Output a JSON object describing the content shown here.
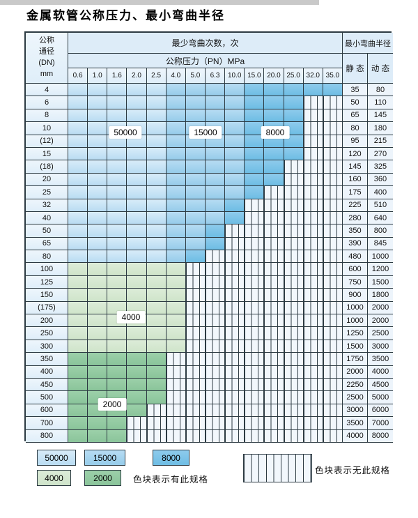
{
  "page": {
    "title": "金属软管公称压力、最小弯曲半径"
  },
  "table": {
    "corner_header": [
      "公称",
      "通径",
      "(DN)",
      "mm"
    ],
    "bend_header": "最少弯曲次数，次",
    "pressure_header": "公称压力（PN）MPa",
    "radius_header": "最小弯曲半径",
    "static_label": "静 态",
    "dynamic_label": "动 态",
    "pressure_ticks": [
      "0.6",
      "1.0",
      "1.6",
      "2.0",
      "2.5",
      "4.0",
      "5.0",
      "6.3",
      "10.0",
      "15.0",
      "20.0",
      "25.0",
      "32.0",
      "35.0"
    ],
    "overlay_labels": [
      "50000",
      "15000",
      "8000",
      "4000",
      "2000"
    ],
    "rows": [
      {
        "dn": "4",
        "regions": [
          [
            "c50000",
            0,
            4
          ],
          [
            "c15000",
            5,
            8
          ],
          [
            "c8000",
            9,
            13
          ]
        ],
        "static": "35",
        "dynamic": "80"
      },
      {
        "dn": "6",
        "regions": [
          [
            "c50000",
            0,
            4
          ],
          [
            "c15000",
            5,
            8
          ],
          [
            "c8000",
            9,
            11
          ]
        ],
        "static": "50",
        "dynamic": "110"
      },
      {
        "dn": "8",
        "regions": [
          [
            "c50000",
            0,
            4
          ],
          [
            "c15000",
            5,
            8
          ],
          [
            "c8000",
            9,
            11
          ]
        ],
        "static": "65",
        "dynamic": "145"
      },
      {
        "dn": "10",
        "regions": [
          [
            "c50000",
            0,
            4
          ],
          [
            "c15000",
            5,
            8
          ],
          [
            "c8000",
            9,
            11
          ]
        ],
        "static": "80",
        "dynamic": "180"
      },
      {
        "dn": "(12)",
        "regions": [
          [
            "c50000",
            0,
            4
          ],
          [
            "c15000",
            5,
            8
          ],
          [
            "c8000",
            9,
            11
          ]
        ],
        "static": "95",
        "dynamic": "215"
      },
      {
        "dn": "15",
        "regions": [
          [
            "c50000",
            0,
            4
          ],
          [
            "c15000",
            5,
            8
          ],
          [
            "c8000",
            9,
            11
          ]
        ],
        "static": "120",
        "dynamic": "270"
      },
      {
        "dn": "(18)",
        "regions": [
          [
            "c50000",
            0,
            4
          ],
          [
            "c15000",
            5,
            8
          ],
          [
            "c8000",
            9,
            10
          ]
        ],
        "static": "145",
        "dynamic": "325"
      },
      {
        "dn": "20",
        "regions": [
          [
            "c50000",
            0,
            4
          ],
          [
            "c15000",
            5,
            8
          ],
          [
            "c8000",
            9,
            10
          ]
        ],
        "static": "160",
        "dynamic": "360"
      },
      {
        "dn": "25",
        "regions": [
          [
            "c50000",
            0,
            4
          ],
          [
            "c15000",
            5,
            8
          ],
          [
            "c8000",
            9,
            9
          ]
        ],
        "static": "175",
        "dynamic": "400"
      },
      {
        "dn": "32",
        "regions": [
          [
            "c50000",
            0,
            4
          ],
          [
            "c15000",
            5,
            7
          ],
          [
            "c8000",
            8,
            8
          ]
        ],
        "static": "225",
        "dynamic": "510"
      },
      {
        "dn": "40",
        "regions": [
          [
            "c50000",
            0,
            4
          ],
          [
            "c15000",
            5,
            7
          ],
          [
            "c8000",
            8,
            8
          ]
        ],
        "static": "280",
        "dynamic": "640"
      },
      {
        "dn": "50",
        "regions": [
          [
            "c50000",
            0,
            4
          ],
          [
            "c15000",
            5,
            6
          ],
          [
            "c8000",
            7,
            7
          ]
        ],
        "static": "350",
        "dynamic": "800"
      },
      {
        "dn": "65",
        "regions": [
          [
            "c50000",
            0,
            4
          ],
          [
            "c15000",
            5,
            6
          ],
          [
            "c8000",
            7,
            7
          ]
        ],
        "static": "390",
        "dynamic": "845"
      },
      {
        "dn": "80",
        "regions": [
          [
            "c50000",
            0,
            4
          ],
          [
            "c15000",
            5,
            5
          ],
          [
            "c8000",
            6,
            6
          ]
        ],
        "static": "480",
        "dynamic": "1000"
      },
      {
        "dn": "100",
        "regions": [
          [
            "c4000",
            0,
            5
          ]
        ],
        "static": "600",
        "dynamic": "1200"
      },
      {
        "dn": "125",
        "regions": [
          [
            "c4000",
            0,
            5
          ]
        ],
        "static": "750",
        "dynamic": "1500"
      },
      {
        "dn": "150",
        "regions": [
          [
            "c4000",
            0,
            5
          ]
        ],
        "static": "900",
        "dynamic": "1800"
      },
      {
        "dn": "(175)",
        "regions": [
          [
            "c4000",
            0,
            5
          ]
        ],
        "static": "1000",
        "dynamic": "2000"
      },
      {
        "dn": "200",
        "regions": [
          [
            "c4000",
            0,
            5
          ]
        ],
        "static": "1000",
        "dynamic": "2000"
      },
      {
        "dn": "250",
        "regions": [
          [
            "c4000",
            0,
            5
          ]
        ],
        "static": "1250",
        "dynamic": "2500"
      },
      {
        "dn": "300",
        "regions": [
          [
            "c4000",
            0,
            5
          ]
        ],
        "static": "1500",
        "dynamic": "3000"
      },
      {
        "dn": "350",
        "regions": [
          [
            "c2000",
            0,
            4
          ]
        ],
        "static": "1750",
        "dynamic": "3500"
      },
      {
        "dn": "400",
        "regions": [
          [
            "c2000",
            0,
            4
          ]
        ],
        "static": "2000",
        "dynamic": "4000"
      },
      {
        "dn": "450",
        "regions": [
          [
            "c2000",
            0,
            4
          ]
        ],
        "static": "2250",
        "dynamic": "4500"
      },
      {
        "dn": "500",
        "regions": [
          [
            "c2000",
            0,
            4
          ]
        ],
        "static": "2500",
        "dynamic": "5000"
      },
      {
        "dn": "600",
        "regions": [
          [
            "c2000",
            0,
            3
          ]
        ],
        "static": "3000",
        "dynamic": "6000"
      },
      {
        "dn": "700",
        "regions": [
          [
            "c2000",
            0,
            2
          ]
        ],
        "static": "3500",
        "dynamic": "7000"
      },
      {
        "dn": "800",
        "regions": [
          [
            "c2000",
            0,
            2
          ]
        ],
        "static": "4000",
        "dynamic": "8000"
      }
    ]
  },
  "legend": {
    "items": [
      {
        "key": "c50000",
        "label": "50000"
      },
      {
        "key": "c15000",
        "label": "15000"
      },
      {
        "key": "c8000",
        "label": "8000"
      },
      {
        "key": "c4000",
        "label": "4000"
      },
      {
        "key": "c2000",
        "label": "2000"
      }
    ],
    "present_note": "色块表示有此规格",
    "absent_note": "色块表示无此规格"
  },
  "colors": {
    "c50000": [
      "#d8ecf9",
      "#b9dcf2"
    ],
    "c15000": [
      "#b7dcf3",
      "#96ccea"
    ],
    "c8000": [
      "#8ecbec",
      "#6ebde4"
    ],
    "c4000": [
      "#dcecd8",
      "#cfe4ca"
    ],
    "c2000": [
      "#9cd0a9",
      "#8ac49a"
    ],
    "stripe_bg": "#f2f7fc",
    "grid": "#2c3a42",
    "label_cell_bg": [
      "#eef6fc",
      "#dfeef9"
    ],
    "value_cell_bg": "#edf4fb",
    "header_bg": "#ddecf8",
    "top_bar": "#c9c9c9"
  }
}
